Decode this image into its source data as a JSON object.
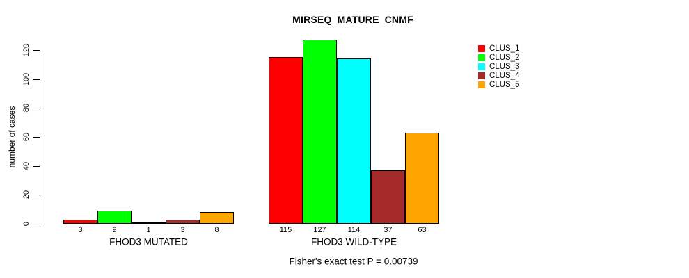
{
  "chart_data": {
    "type": "bar",
    "title": "MIRSEQ_MATURE_CNMF",
    "ylabel": "number of cases",
    "xlabel": "",
    "ylim": [
      0,
      120
    ],
    "yticks": [
      0,
      20,
      40,
      60,
      80,
      100,
      120
    ],
    "grid": false,
    "legend_position": "top-right",
    "bar_border_color": "#000000",
    "categories": [
      "FHOD3 MUTATED",
      "FHOD3 WILD-TYPE"
    ],
    "series": [
      {
        "name": "CLUS_1",
        "color": "#FF0000",
        "values": [
          3,
          115
        ]
      },
      {
        "name": "CLUS_2",
        "color": "#00FF00",
        "values": [
          9,
          127
        ]
      },
      {
        "name": "CLUS_3",
        "color": "#00FFFF",
        "values": [
          1,
          114
        ]
      },
      {
        "name": "CLUS_4",
        "color": "#A52A2A",
        "values": [
          3,
          37
        ]
      },
      {
        "name": "CLUS_5",
        "color": "#FFA500",
        "values": [
          8,
          63
        ]
      }
    ],
    "value_labels_shown": true,
    "annotation": "Fisher's exact test P = 0.00739"
  }
}
